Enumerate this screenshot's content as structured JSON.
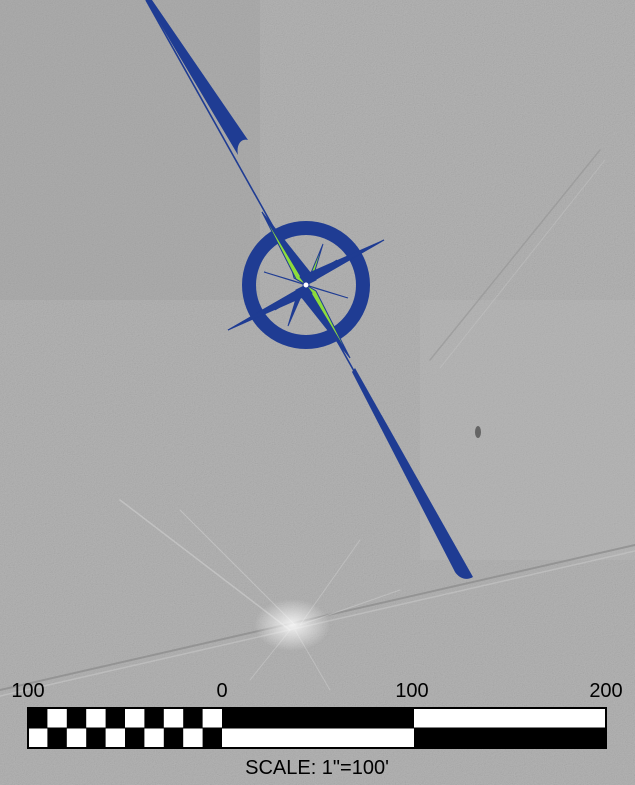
{
  "map": {
    "colors": {
      "ground": "#a8a8a8",
      "north_arrow_blue": "#1f3c93",
      "compass_green": "#8ddc3c",
      "scale_black": "#000000",
      "scale_white": "#ffffff"
    }
  },
  "scale_bar": {
    "labels": [
      "100",
      "0",
      "100",
      "200"
    ],
    "caption": "SCALE: 1\"=100'"
  }
}
